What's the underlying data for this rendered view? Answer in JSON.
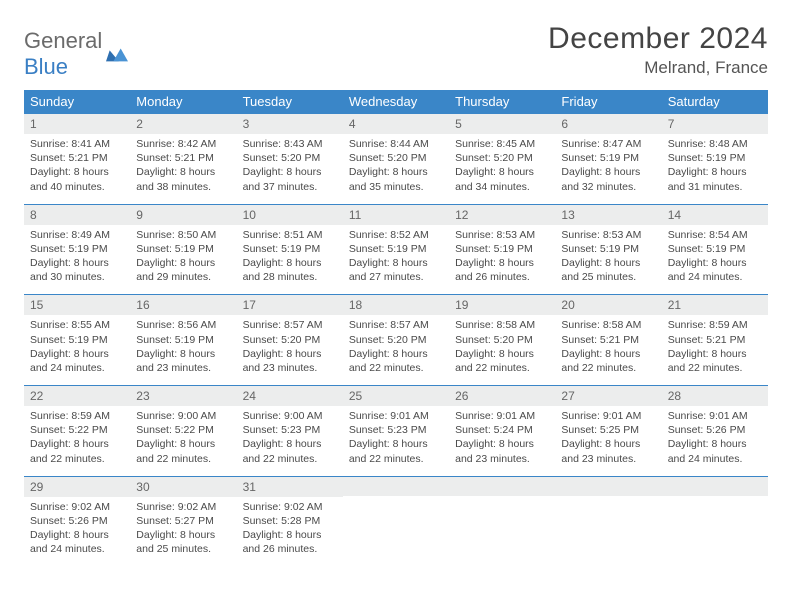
{
  "logo": {
    "word1": "General",
    "word2": "Blue"
  },
  "title": "December 2024",
  "location": "Melrand, France",
  "colors": {
    "header_bg": "#3a86c8",
    "header_text": "#ffffff",
    "daynum_bg": "#eceded",
    "row_border": "#3a86c8",
    "logo_gray": "#6b6b6b",
    "logo_blue": "#3a7fc4"
  },
  "weekdays": [
    "Sunday",
    "Monday",
    "Tuesday",
    "Wednesday",
    "Thursday",
    "Friday",
    "Saturday"
  ],
  "weeks": [
    [
      {
        "n": "1",
        "sr": "8:41 AM",
        "ss": "5:21 PM",
        "dl": "8 hours and 40 minutes."
      },
      {
        "n": "2",
        "sr": "8:42 AM",
        "ss": "5:21 PM",
        "dl": "8 hours and 38 minutes."
      },
      {
        "n": "3",
        "sr": "8:43 AM",
        "ss": "5:20 PM",
        "dl": "8 hours and 37 minutes."
      },
      {
        "n": "4",
        "sr": "8:44 AM",
        "ss": "5:20 PM",
        "dl": "8 hours and 35 minutes."
      },
      {
        "n": "5",
        "sr": "8:45 AM",
        "ss": "5:20 PM",
        "dl": "8 hours and 34 minutes."
      },
      {
        "n": "6",
        "sr": "8:47 AM",
        "ss": "5:19 PM",
        "dl": "8 hours and 32 minutes."
      },
      {
        "n": "7",
        "sr": "8:48 AM",
        "ss": "5:19 PM",
        "dl": "8 hours and 31 minutes."
      }
    ],
    [
      {
        "n": "8",
        "sr": "8:49 AM",
        "ss": "5:19 PM",
        "dl": "8 hours and 30 minutes."
      },
      {
        "n": "9",
        "sr": "8:50 AM",
        "ss": "5:19 PM",
        "dl": "8 hours and 29 minutes."
      },
      {
        "n": "10",
        "sr": "8:51 AM",
        "ss": "5:19 PM",
        "dl": "8 hours and 28 minutes."
      },
      {
        "n": "11",
        "sr": "8:52 AM",
        "ss": "5:19 PM",
        "dl": "8 hours and 27 minutes."
      },
      {
        "n": "12",
        "sr": "8:53 AM",
        "ss": "5:19 PM",
        "dl": "8 hours and 26 minutes."
      },
      {
        "n": "13",
        "sr": "8:53 AM",
        "ss": "5:19 PM",
        "dl": "8 hours and 25 minutes."
      },
      {
        "n": "14",
        "sr": "8:54 AM",
        "ss": "5:19 PM",
        "dl": "8 hours and 24 minutes."
      }
    ],
    [
      {
        "n": "15",
        "sr": "8:55 AM",
        "ss": "5:19 PM",
        "dl": "8 hours and 24 minutes."
      },
      {
        "n": "16",
        "sr": "8:56 AM",
        "ss": "5:19 PM",
        "dl": "8 hours and 23 minutes."
      },
      {
        "n": "17",
        "sr": "8:57 AM",
        "ss": "5:20 PM",
        "dl": "8 hours and 23 minutes."
      },
      {
        "n": "18",
        "sr": "8:57 AM",
        "ss": "5:20 PM",
        "dl": "8 hours and 22 minutes."
      },
      {
        "n": "19",
        "sr": "8:58 AM",
        "ss": "5:20 PM",
        "dl": "8 hours and 22 minutes."
      },
      {
        "n": "20",
        "sr": "8:58 AM",
        "ss": "5:21 PM",
        "dl": "8 hours and 22 minutes."
      },
      {
        "n": "21",
        "sr": "8:59 AM",
        "ss": "5:21 PM",
        "dl": "8 hours and 22 minutes."
      }
    ],
    [
      {
        "n": "22",
        "sr": "8:59 AM",
        "ss": "5:22 PM",
        "dl": "8 hours and 22 minutes."
      },
      {
        "n": "23",
        "sr": "9:00 AM",
        "ss": "5:22 PM",
        "dl": "8 hours and 22 minutes."
      },
      {
        "n": "24",
        "sr": "9:00 AM",
        "ss": "5:23 PM",
        "dl": "8 hours and 22 minutes."
      },
      {
        "n": "25",
        "sr": "9:01 AM",
        "ss": "5:23 PM",
        "dl": "8 hours and 22 minutes."
      },
      {
        "n": "26",
        "sr": "9:01 AM",
        "ss": "5:24 PM",
        "dl": "8 hours and 23 minutes."
      },
      {
        "n": "27",
        "sr": "9:01 AM",
        "ss": "5:25 PM",
        "dl": "8 hours and 23 minutes."
      },
      {
        "n": "28",
        "sr": "9:01 AM",
        "ss": "5:26 PM",
        "dl": "8 hours and 24 minutes."
      }
    ],
    [
      {
        "n": "29",
        "sr": "9:02 AM",
        "ss": "5:26 PM",
        "dl": "8 hours and 24 minutes."
      },
      {
        "n": "30",
        "sr": "9:02 AM",
        "ss": "5:27 PM",
        "dl": "8 hours and 25 minutes."
      },
      {
        "n": "31",
        "sr": "9:02 AM",
        "ss": "5:28 PM",
        "dl": "8 hours and 26 minutes."
      },
      {
        "empty": true
      },
      {
        "empty": true
      },
      {
        "empty": true
      },
      {
        "empty": true
      }
    ]
  ],
  "labels": {
    "sunrise": "Sunrise: ",
    "sunset": "Sunset: ",
    "daylight": "Daylight: "
  }
}
